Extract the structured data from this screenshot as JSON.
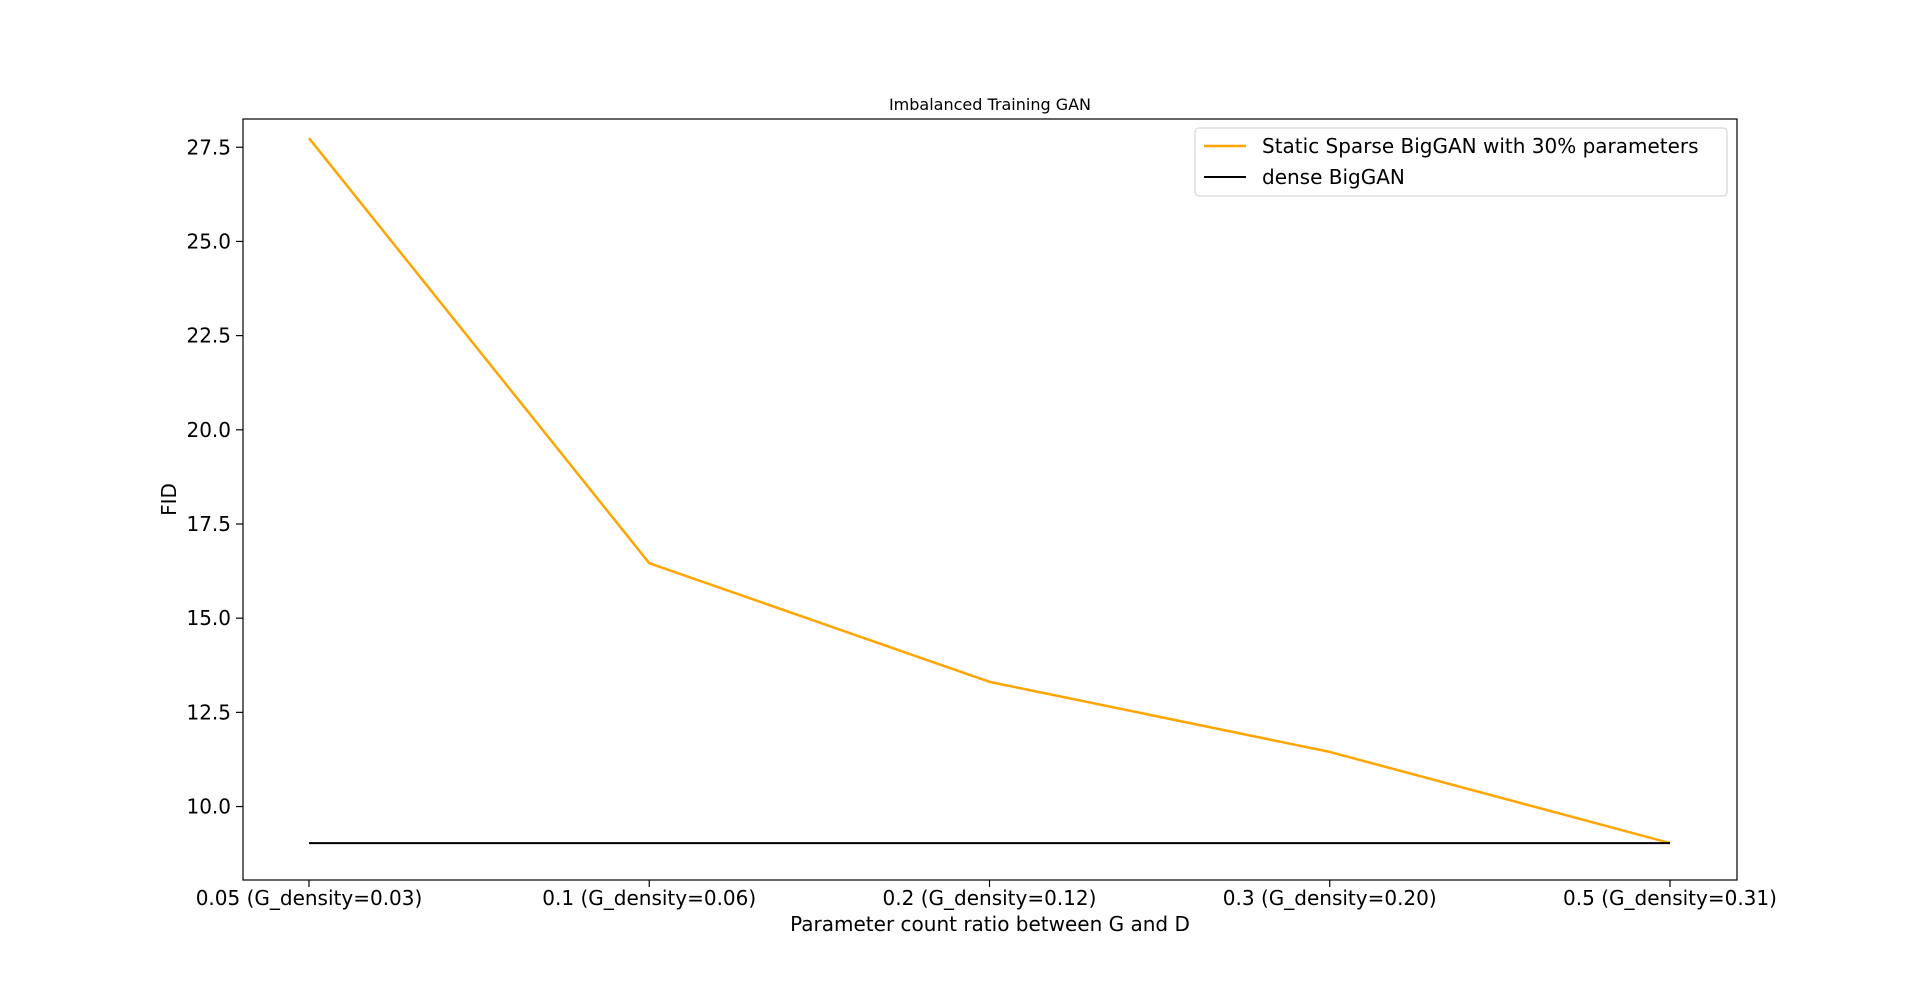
{
  "chart_data": {
    "type": "line",
    "title": "Imbalanced Training GAN",
    "xlabel": "Parameter count ratio between G and D",
    "ylabel": "FID",
    "categories": [
      "0.05 (G_density=0.03)",
      "0.1 (G_density=0.06)",
      "0.2 (G_density=0.12)",
      "0.3 (G_density=0.20)",
      "0.5 (G_density=0.31)"
    ],
    "ylim": [
      8.05,
      28.25
    ],
    "yticks": [
      10.0,
      12.5,
      15.0,
      17.5,
      20.0,
      22.5,
      25.0,
      27.5
    ],
    "ytick_labels": [
      "10.0",
      "12.5",
      "15.0",
      "17.5",
      "20.0",
      "22.5",
      "25.0",
      "27.5"
    ],
    "grid": false,
    "legend_position": "top-right",
    "series": [
      {
        "name": "Static Sparse BigGAN with 30% parameters",
        "color": "#ffa500",
        "values": [
          27.74,
          16.46,
          13.31,
          11.45,
          9.03
        ]
      },
      {
        "name": "dense BigGAN",
        "color": "#000000",
        "values": [
          9.03,
          9.03,
          9.03,
          9.03,
          9.03
        ]
      }
    ]
  }
}
